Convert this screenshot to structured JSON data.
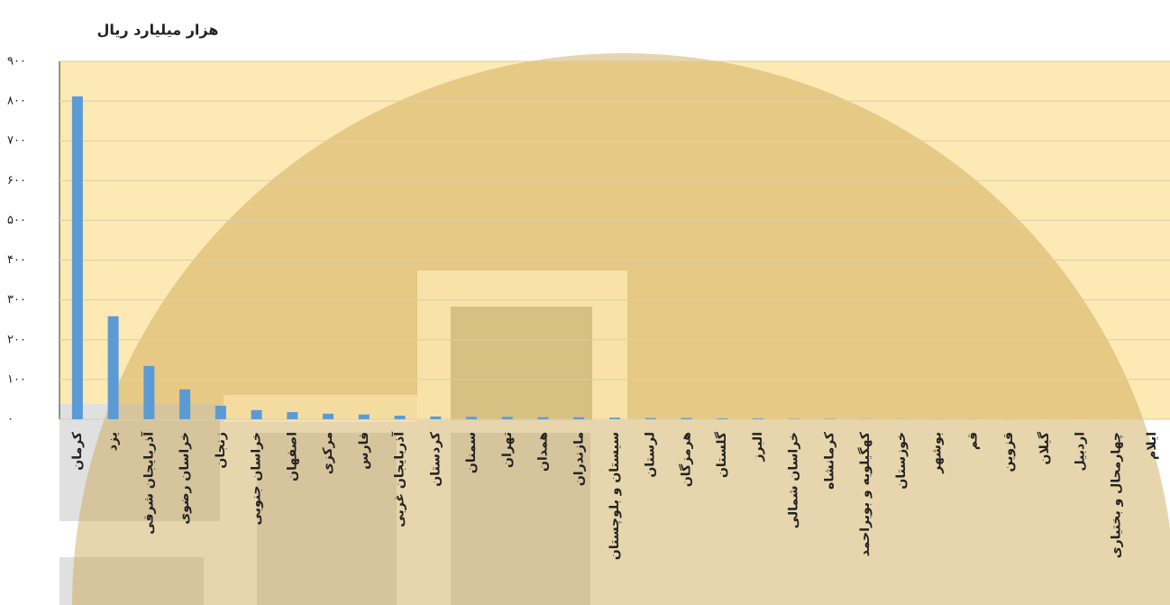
{
  "chart_data": {
    "type": "bar",
    "title": "هزار میلیارد ریال",
    "categories": [
      "کرمان",
      "یزد",
      "آذربایجان شرقی",
      "خراسان رضوی",
      "زنجان",
      "خراسان جنوبی",
      "اصفهان",
      "مرکزی",
      "فارس",
      "آذربایجان غربی",
      "کردستان",
      "سمنان",
      "تهران",
      "همدان",
      "مازندران",
      "سیستان و بلوچستان",
      "لرستان",
      "هرمزگان",
      "گلستان",
      "البرز",
      "خراسان شمالی",
      "کرمانشاه",
      "کهگیلویه و بویراحمد",
      "خوزستان",
      "بوشهر",
      "قم",
      "قزوین",
      "گیلان",
      "اردبیل",
      "چهارمحال و بختیاری",
      "ایلام"
    ],
    "values": [
      812,
      259,
      134,
      75,
      34,
      23,
      18,
      14,
      12,
      9,
      7,
      6,
      6,
      5,
      5,
      4,
      3,
      3,
      2,
      2,
      1,
      1,
      0.5,
      0.4,
      0.3,
      0.2,
      0.2,
      0.1,
      0.1,
      0.1,
      0
    ],
    "color": "#5b9bd5",
    "ylim": [
      0,
      900
    ],
    "yticks": [
      {
        "value": 0,
        "label": "۰"
      },
      {
        "value": 100,
        "label": "۱۰۰"
      },
      {
        "value": 200,
        "label": "۲۰۰"
      },
      {
        "value": 300,
        "label": "۳۰۰"
      },
      {
        "value": 400,
        "label": "۴۰۰"
      },
      {
        "value": 500,
        "label": "۵۰۰"
      },
      {
        "value": 600,
        "label": "۶۰۰"
      },
      {
        "value": 700,
        "label": "۷۰۰"
      },
      {
        "value": 800,
        "label": "۸۰۰"
      },
      {
        "value": 900,
        "label": "۹۰۰"
      }
    ],
    "grid": true
  }
}
